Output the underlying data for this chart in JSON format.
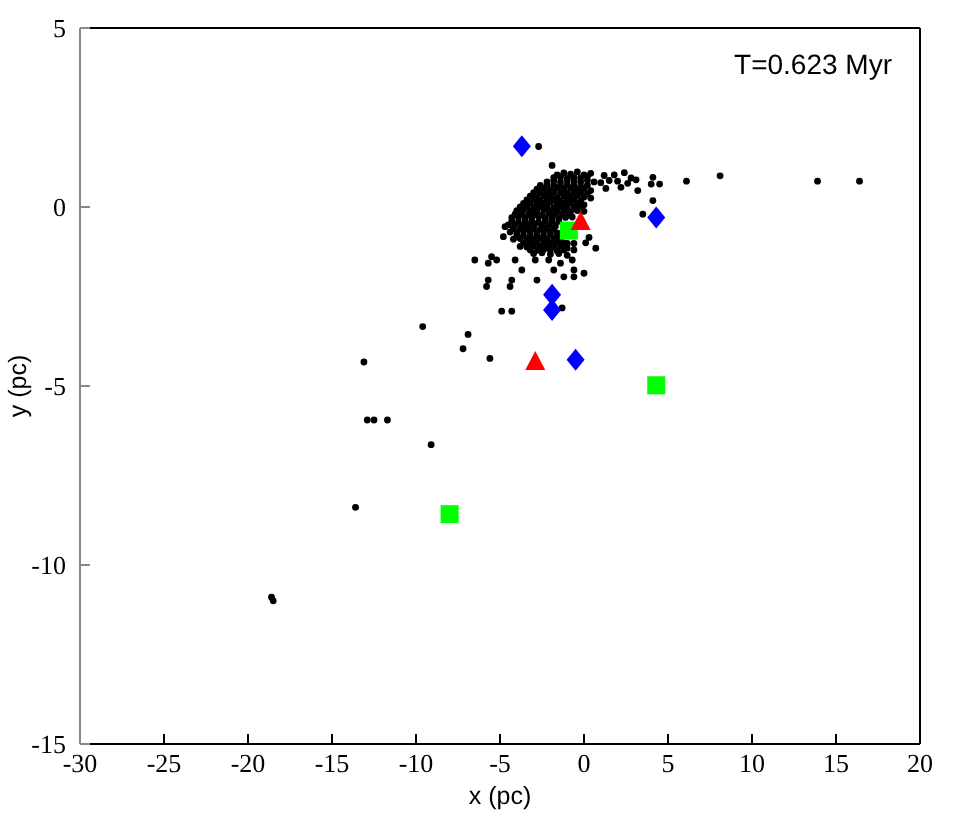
{
  "chart_data": {
    "type": "scatter",
    "xlabel": "x (pc)",
    "ylabel": "y (pc)",
    "annotations": [
      "T=0.623 Myr"
    ],
    "xlim": [
      -30,
      20
    ],
    "ylim": [
      -15,
      5
    ],
    "xticks": [
      -30,
      -25,
      -20,
      -15,
      -10,
      -5,
      0,
      5,
      10,
      15,
      20
    ],
    "yticks": [
      -15,
      -10,
      -5,
      0,
      5
    ],
    "series": [
      {
        "color": "#000000",
        "marker": "circle",
        "x": [
          -1.6,
          -1.2,
          -0.8,
          -0.4,
          0.0,
          0.4,
          1.2,
          1.8,
          2.4,
          -2.2,
          -1.8,
          -1.4,
          -1.0,
          -0.6,
          -0.2,
          0.2,
          0.6,
          1.0,
          1.5,
          2.0,
          2.6,
          3.1,
          -2.8,
          -2.4,
          -2.0,
          -1.6,
          -1.2,
          -0.8,
          -0.4,
          0.0,
          0.4,
          1.3,
          2.2,
          -3.2,
          -2.8,
          -2.4,
          -2.0,
          -1.6,
          -1.2,
          -0.8,
          -0.4,
          0.0,
          0.4,
          -3.6,
          -3.2,
          -2.8,
          -2.4,
          -2.0,
          -1.6,
          -1.2,
          -0.8,
          -0.4,
          0.0,
          -4.0,
          -3.6,
          -3.2,
          -2.8,
          -2.4,
          -2.0,
          -1.6,
          -1.2,
          -0.8,
          -0.4,
          0.0,
          -4.3,
          -3.9,
          -3.5,
          -3.1,
          -2.7,
          -2.3,
          -1.9,
          -1.5,
          -1.1,
          -0.7,
          -4.5,
          -4.1,
          -3.7,
          -3.3,
          -2.9,
          -2.5,
          -2.1,
          -1.7,
          -4.4,
          -4.0,
          -3.6,
          -3.2,
          -2.8,
          -2.4,
          -2.0,
          -1.6,
          -4.2,
          -3.8,
          -3.4,
          -3.0,
          -2.6,
          -2.2,
          -1.8,
          -1.4,
          -1.0,
          -0.6,
          -3.8,
          -3.4,
          -3.0,
          -2.6,
          -2.2,
          -1.8,
          -1.4,
          -1.0,
          -0.6,
          -3.0,
          -2.5,
          -2.0,
          -1.5,
          -1.0,
          -2.7,
          -1.9,
          2.8,
          3.2,
          3.5,
          4.1,
          4.0,
          4.5,
          4.1,
          6.1,
          8.1,
          13.9,
          16.4,
          -4.8,
          -4.7,
          -5.5,
          -6.5,
          -5.2,
          -5.7,
          -5.7,
          -5.8,
          -4.3,
          -4.4,
          -3.7,
          -2.8,
          -2.9,
          -1.2,
          -0.6,
          0.0,
          0.7,
          -4.1,
          -2.1,
          -1.4,
          -0.6,
          -0.7,
          -1.8,
          -4.9,
          -4.3,
          -1.3,
          -6.9,
          -7.2,
          -5.6,
          -9.6,
          -13.1,
          -12.9,
          -12.5,
          -11.7,
          -9.1,
          -13.6,
          -18.6,
          -18.5,
          0.3,
          0.1,
          -1.8,
          -1.4,
          -1.0,
          -0.6,
          -0.2,
          0.2,
          -2.6,
          -2.2,
          -1.8,
          -1.4,
          -1.0,
          -0.6,
          -0.2,
          0.2,
          -3.0,
          -2.6,
          -2.2,
          -1.8,
          -1.4,
          -1.0,
          -0.6,
          -0.2,
          0.2,
          -3.4,
          -3.0,
          -2.6,
          -2.2,
          -1.8,
          -1.4,
          -1.0,
          -0.6,
          -0.2,
          -3.8,
          -3.4,
          -3.0,
          -2.6,
          -2.2,
          -1.8,
          -1.4,
          -1.0,
          -0.6,
          -0.2,
          -4.1,
          -3.7,
          -3.3,
          -2.9,
          -2.5,
          -2.1,
          -1.7,
          -1.3,
          -0.9,
          -4.3,
          -3.9,
          -3.5,
          -3.1,
          -2.7,
          -2.3,
          -1.9,
          -1.5,
          -4.2,
          -3.8,
          -3.4,
          -3.0,
          -2.6,
          -2.2,
          -1.8,
          -4.0,
          -3.6,
          -3.2,
          -2.8,
          -2.4,
          -2.0,
          -1.6,
          -3.6,
          -3.2,
          -2.8,
          -2.4,
          -2.0,
          -1.6,
          -1.2,
          -3.2,
          -2.8,
          -2.4,
          -2.0,
          -1.6,
          -1.2
        ],
        "values": [
          0.9,
          0.95,
          0.92,
          0.98,
          0.9,
          0.94,
          0.88,
          0.9,
          0.96,
          0.7,
          0.74,
          0.7,
          0.76,
          0.72,
          0.7,
          0.75,
          0.7,
          0.68,
          0.74,
          0.72,
          0.66,
          0.76,
          0.5,
          0.52,
          0.48,
          0.54,
          0.5,
          0.52,
          0.48,
          0.5,
          0.46,
          0.52,
          0.55,
          0.3,
          0.28,
          0.32,
          0.3,
          0.27,
          0.31,
          0.3,
          0.33,
          0.28,
          0.25,
          0.1,
          0.12,
          0.08,
          0.1,
          0.13,
          0.09,
          0.1,
          0.12,
          0.08,
          0.06,
          -0.1,
          -0.08,
          -0.12,
          -0.1,
          -0.07,
          -0.11,
          -0.1,
          -0.09,
          -0.13,
          -0.1,
          -0.12,
          -0.3,
          -0.28,
          -0.32,
          -0.3,
          -0.27,
          -0.31,
          -0.3,
          -0.33,
          -0.29,
          -0.28,
          -0.5,
          -0.48,
          -0.52,
          -0.5,
          -0.47,
          -0.51,
          -0.5,
          -0.53,
          -0.7,
          -0.72,
          -0.68,
          -0.7,
          -0.73,
          -0.69,
          -0.7,
          -0.72,
          -0.9,
          -0.88,
          -0.92,
          -0.9,
          -0.87,
          -0.91,
          -0.9,
          -0.93,
          -1.02,
          -1.02,
          -1.1,
          -1.12,
          -1.08,
          -1.1,
          -1.13,
          -1.09,
          -1.1,
          -1.15,
          -1.2,
          -1.3,
          -1.28,
          -1.32,
          -1.3,
          -1.35,
          1.69,
          1.16,
          0.81,
          0.46,
          -0.2,
          0.83,
          0.64,
          0.64,
          0.18,
          0.72,
          0.87,
          0.72,
          0.72,
          -0.83,
          -0.55,
          -1.39,
          -1.48,
          -1.48,
          -1.57,
          -2.04,
          -2.22,
          -2.04,
          -2.22,
          -1.76,
          -2.04,
          -1.48,
          -1.95,
          -1.95,
          -1.85,
          -1.15,
          -1.48,
          -1.48,
          -1.57,
          -1.76,
          -1.48,
          -1.76,
          -2.91,
          -2.91,
          -2.82,
          -3.56,
          -3.96,
          -4.23,
          -3.34,
          -4.33,
          -5.95,
          -5.95,
          -5.95,
          -6.64,
          -8.39,
          -10.9,
          -11.0,
          -0.85,
          -1.0,
          0.82,
          0.84,
          0.8,
          0.83,
          0.81,
          0.85,
          0.6,
          0.62,
          0.61,
          0.59,
          0.63,
          0.6,
          0.58,
          0.61,
          0.4,
          0.41,
          0.39,
          0.42,
          0.4,
          0.38,
          0.41,
          0.4,
          0.37,
          0.2,
          0.21,
          0.19,
          0.2,
          0.22,
          0.18,
          0.2,
          0.21,
          0.19,
          0.0,
          0.01,
          -0.01,
          0.02,
          0.0,
          -0.02,
          0.01,
          0.0,
          -0.01,
          0.02,
          -0.2,
          -0.19,
          -0.21,
          -0.2,
          -0.22,
          -0.18,
          -0.2,
          -0.21,
          -0.2,
          -0.4,
          -0.41,
          -0.39,
          -0.4,
          -0.42,
          -0.38,
          -0.4,
          -0.4,
          -0.6,
          -0.61,
          -0.59,
          -0.6,
          -0.62,
          -0.58,
          -0.6,
          -0.8,
          -0.79,
          -0.81,
          -0.8,
          -0.82,
          -0.78,
          -0.8,
          -1.0,
          -0.99,
          -1.01,
          -1.0,
          -1.02,
          -0.98,
          -1.0,
          -1.2,
          -1.21,
          -1.19,
          -1.2,
          -1.22,
          -1.2
        ]
      },
      {
        "color": "#00ff00",
        "marker": "square",
        "x": [
          -0.9,
          4.3,
          -8.0
        ],
        "values": [
          -0.66,
          -4.98,
          -8.58
        ]
      },
      {
        "color": "#ff0000",
        "marker": "triangle",
        "x": [
          -0.2,
          -2.9
        ],
        "values": [
          -0.42,
          -4.33
        ]
      },
      {
        "color": "#0000ff",
        "marker": "diamond",
        "x": [
          -3.7,
          4.3,
          -1.9,
          -1.9,
          -0.5
        ],
        "values": [
          1.7,
          -0.29,
          -2.45,
          -2.88,
          -4.27
        ]
      }
    ]
  }
}
